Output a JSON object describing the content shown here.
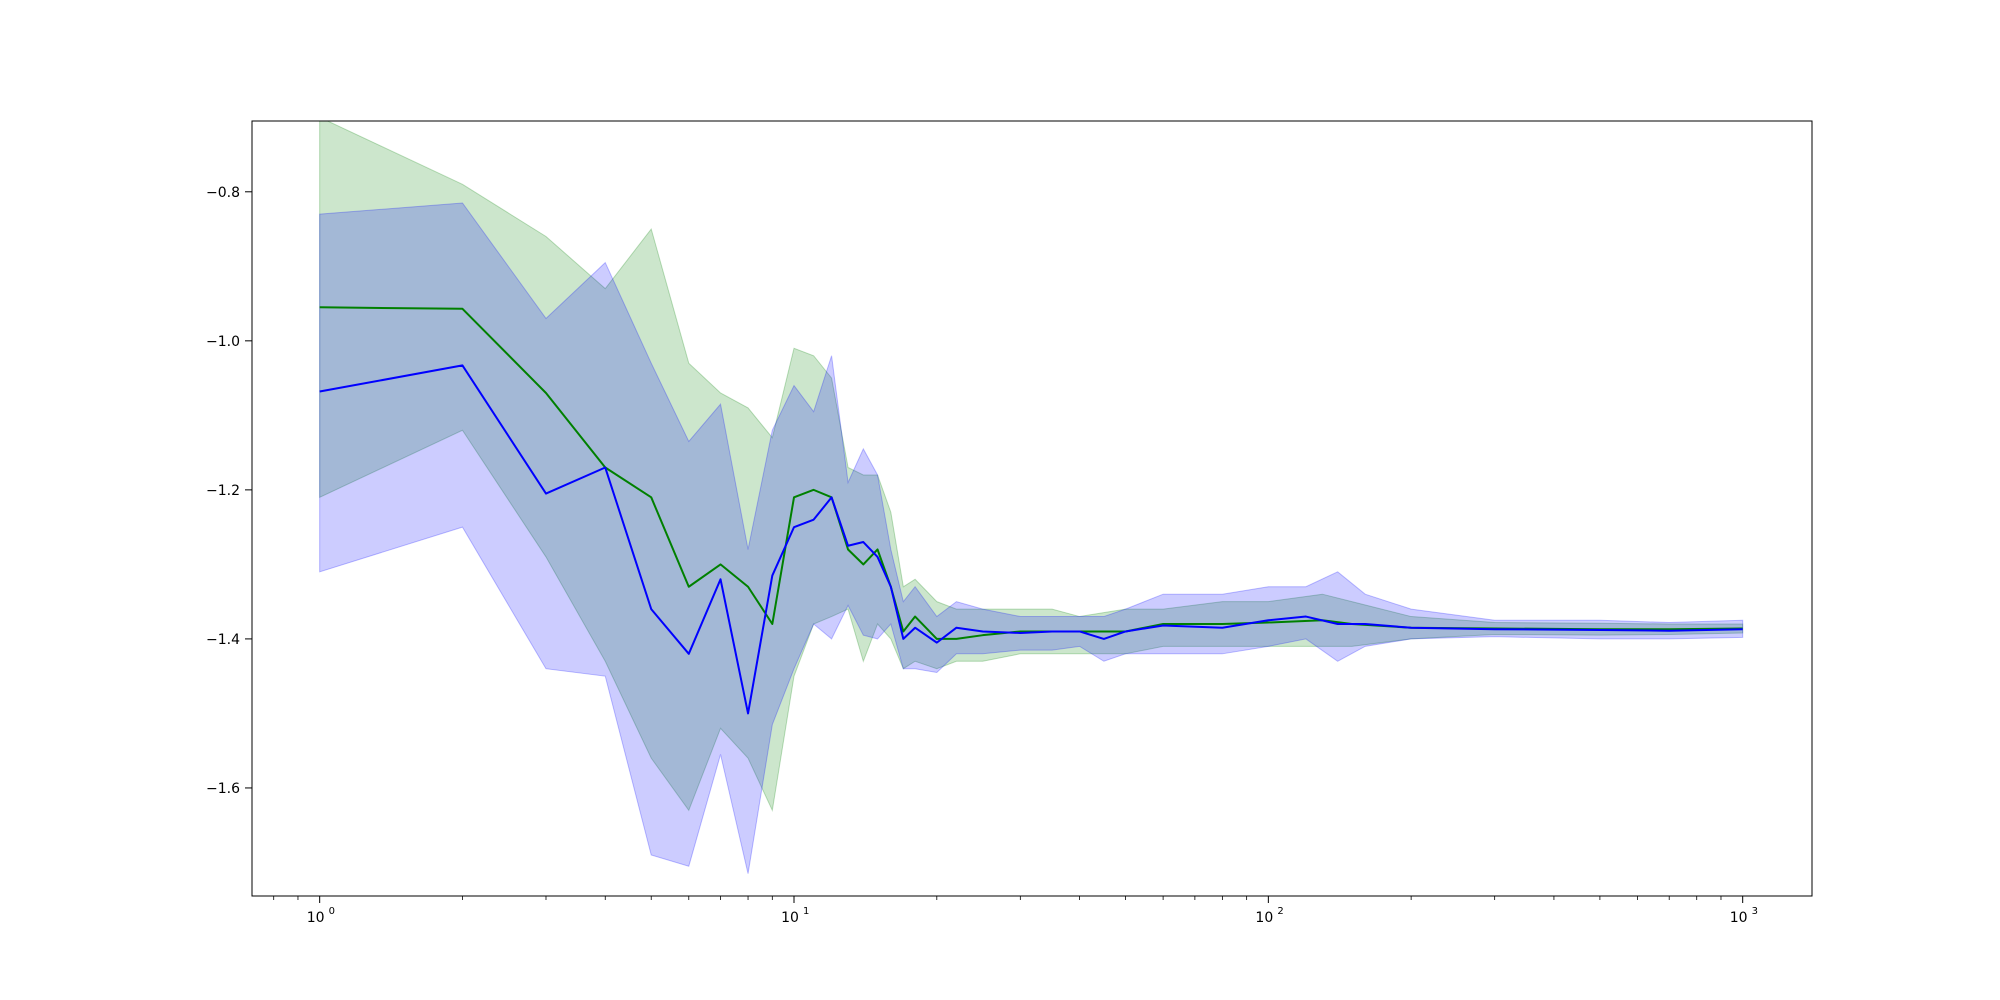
{
  "chart_data": {
    "type": "line",
    "title": "",
    "xlabel": "",
    "ylabel": "",
    "x_scale": "log",
    "xlim": [
      0.72,
      1400
    ],
    "ylim": [
      -1.745,
      -0.705
    ],
    "grid": false,
    "legend": "none",
    "x_ticks": [
      {
        "value": 1,
        "base": "10",
        "exp": "0"
      },
      {
        "value": 10,
        "base": "10",
        "exp": "1"
      },
      {
        "value": 100,
        "base": "10",
        "exp": "2"
      },
      {
        "value": 1000,
        "base": "10",
        "exp": "3"
      }
    ],
    "y_ticks": [
      {
        "value": -0.8,
        "label": "−0.8"
      },
      {
        "value": -1.0,
        "label": "−1.0"
      },
      {
        "value": -1.2,
        "label": "−1.2"
      },
      {
        "value": -1.4,
        "label": "−1.4"
      },
      {
        "value": -1.6,
        "label": "−1.6"
      }
    ],
    "series": [
      {
        "color": "#008000",
        "band_color": "#008000",
        "band_opacity": 0.2,
        "points": [
          [
            1,
            -0.955,
            -0.7,
            -1.21
          ],
          [
            2,
            -0.957,
            -0.79,
            -1.12
          ],
          [
            3,
            -1.07,
            -0.86,
            -1.29
          ],
          [
            4,
            -1.17,
            -0.93,
            -1.43
          ],
          [
            5,
            -1.21,
            -0.85,
            -1.56
          ],
          [
            6,
            -1.33,
            -1.03,
            -1.63
          ],
          [
            7,
            -1.3,
            -1.07,
            -1.52
          ],
          [
            8,
            -1.33,
            -1.09,
            -1.56
          ],
          [
            9,
            -1.38,
            -1.13,
            -1.63
          ],
          [
            10,
            -1.21,
            -1.01,
            -1.45
          ],
          [
            11,
            -1.2,
            -1.02,
            -1.38
          ],
          [
            12,
            -1.21,
            -1.05,
            -1.37
          ],
          [
            13,
            -1.28,
            -1.17,
            -1.36
          ],
          [
            14,
            -1.3,
            -1.18,
            -1.43
          ],
          [
            15,
            -1.28,
            -1.18,
            -1.38
          ],
          [
            16,
            -1.33,
            -1.23,
            -1.4
          ],
          [
            17,
            -1.39,
            -1.33,
            -1.44
          ],
          [
            18,
            -1.37,
            -1.32,
            -1.43
          ],
          [
            20,
            -1.4,
            -1.35,
            -1.44
          ],
          [
            22,
            -1.4,
            -1.36,
            -1.43
          ],
          [
            25,
            -1.395,
            -1.36,
            -1.43
          ],
          [
            30,
            -1.39,
            -1.36,
            -1.42
          ],
          [
            35,
            -1.39,
            -1.36,
            -1.42
          ],
          [
            40,
            -1.39,
            -1.37,
            -1.42
          ],
          [
            50,
            -1.39,
            -1.36,
            -1.42
          ],
          [
            60,
            -1.38,
            -1.36,
            -1.41
          ],
          [
            80,
            -1.38,
            -1.35,
            -1.41
          ],
          [
            100,
            -1.378,
            -1.35,
            -1.41
          ],
          [
            130,
            -1.375,
            -1.34,
            -1.41
          ],
          [
            150,
            -1.38,
            -1.35,
            -1.41
          ],
          [
            200,
            -1.385,
            -1.37,
            -1.4
          ],
          [
            300,
            -1.386,
            -1.378,
            -1.394
          ],
          [
            500,
            -1.387,
            -1.379,
            -1.395
          ],
          [
            700,
            -1.387,
            -1.38,
            -1.394
          ],
          [
            1000,
            -1.386,
            -1.38,
            -1.392
          ]
        ]
      },
      {
        "color": "#0000ff",
        "band_color": "#0000ff",
        "band_opacity": 0.2,
        "points": [
          [
            1,
            -1.068,
            -0.83,
            -1.31
          ],
          [
            2,
            -1.033,
            -0.815,
            -1.25
          ],
          [
            3,
            -1.205,
            -0.97,
            -1.44
          ],
          [
            4,
            -1.17,
            -0.895,
            -1.45
          ],
          [
            5,
            -1.36,
            -1.03,
            -1.69
          ],
          [
            6,
            -1.42,
            -1.135,
            -1.705
          ],
          [
            7,
            -1.32,
            -1.085,
            -1.555
          ],
          [
            8,
            -1.5,
            -1.28,
            -1.715
          ],
          [
            9,
            -1.315,
            -1.12,
            -1.515
          ],
          [
            10,
            -1.25,
            -1.06,
            -1.44
          ],
          [
            11,
            -1.24,
            -1.095,
            -1.38
          ],
          [
            12,
            -1.21,
            -1.02,
            -1.4
          ],
          [
            13,
            -1.275,
            -1.19,
            -1.355
          ],
          [
            14,
            -1.27,
            -1.145,
            -1.395
          ],
          [
            15,
            -1.29,
            -1.18,
            -1.4
          ],
          [
            16,
            -1.33,
            -1.28,
            -1.38
          ],
          [
            17,
            -1.4,
            -1.35,
            -1.44
          ],
          [
            18,
            -1.385,
            -1.33,
            -1.44
          ],
          [
            20,
            -1.405,
            -1.37,
            -1.445
          ],
          [
            22,
            -1.385,
            -1.35,
            -1.42
          ],
          [
            25,
            -1.39,
            -1.36,
            -1.42
          ],
          [
            30,
            -1.392,
            -1.37,
            -1.415
          ],
          [
            35,
            -1.39,
            -1.37,
            -1.415
          ],
          [
            40,
            -1.39,
            -1.37,
            -1.41
          ],
          [
            45,
            -1.4,
            -1.37,
            -1.43
          ],
          [
            50,
            -1.39,
            -1.36,
            -1.42
          ],
          [
            60,
            -1.382,
            -1.34,
            -1.42
          ],
          [
            80,
            -1.385,
            -1.34,
            -1.42
          ],
          [
            100,
            -1.375,
            -1.33,
            -1.41
          ],
          [
            120,
            -1.37,
            -1.33,
            -1.4
          ],
          [
            140,
            -1.38,
            -1.31,
            -1.43
          ],
          [
            160,
            -1.38,
            -1.34,
            -1.41
          ],
          [
            200,
            -1.385,
            -1.36,
            -1.4
          ],
          [
            300,
            -1.387,
            -1.375,
            -1.397
          ],
          [
            500,
            -1.388,
            -1.375,
            -1.4
          ],
          [
            700,
            -1.389,
            -1.378,
            -1.4
          ],
          [
            1000,
            -1.387,
            -1.375,
            -1.398
          ]
        ]
      }
    ]
  }
}
